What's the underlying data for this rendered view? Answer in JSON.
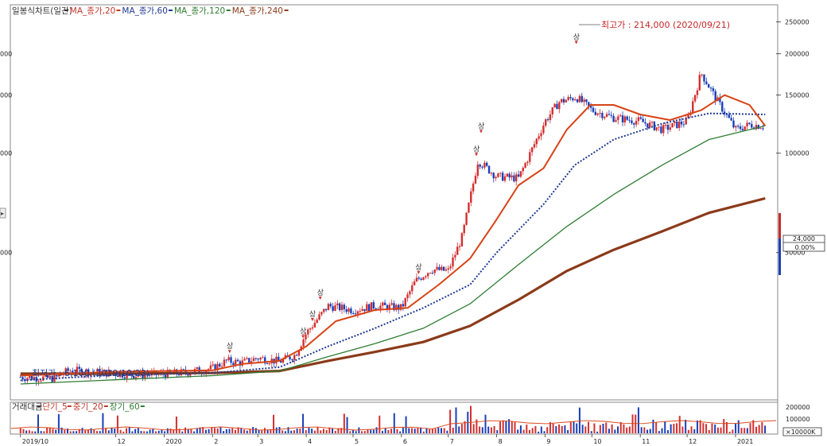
{
  "chart_data": [
    {
      "type": "candlestick",
      "legend": [
        {
          "label": "일봉식차트(일간)",
          "color": "#333333"
        },
        {
          "label": "MA_종가,20",
          "color": "#c0392b"
        },
        {
          "label": "MA_종가,60",
          "color": "#1f3a93"
        },
        {
          "label": "MA_종가,120",
          "color": "#2e7d32"
        },
        {
          "label": "MA_종가,240",
          "color": "#8b3a1a"
        }
      ],
      "y_scale": "log",
      "ylim": [
        18000,
        280000
      ],
      "y_ticks": [
        250000,
        200000,
        150000,
        100000,
        50000
      ],
      "y_ticks_left": [
        "000",
        "000",
        "000",
        "000"
      ],
      "x_ticks": [
        "2019/10",
        "12",
        "2020",
        "2",
        "3",
        "4",
        "5",
        "6",
        "7",
        "8",
        "9",
        "10",
        "11",
        "12",
        "2021"
      ],
      "close_path": [
        [
          "2019-10-01",
          21000
        ],
        [
          "2019-10-23",
          20800
        ],
        [
          "2019-11-01",
          22000
        ],
        [
          "2019-11-15",
          21800
        ],
        [
          "2019-12-01",
          21500
        ],
        [
          "2019-12-15",
          21300
        ],
        [
          "2020-01-01",
          21400
        ],
        [
          "2020-01-15",
          21700
        ],
        [
          "2020-02-01",
          22300
        ],
        [
          "2020-02-10",
          23500
        ],
        [
          "2020-02-20",
          23200
        ],
        [
          "2020-03-01",
          24000
        ],
        [
          "2020-03-15",
          23400
        ],
        [
          "2020-03-25",
          24500
        ],
        [
          "2020-04-01",
          28500
        ],
        [
          "2020-04-15",
          34500
        ],
        [
          "2020-05-01",
          33500
        ],
        [
          "2020-05-15",
          34500
        ],
        [
          "2020-06-01",
          34000
        ],
        [
          "2020-06-10",
          41000
        ],
        [
          "2020-06-20",
          44500
        ],
        [
          "2020-07-01",
          44000
        ],
        [
          "2020-07-10",
          56000
        ],
        [
          "2020-07-20",
          95000
        ],
        [
          "2020-08-01",
          85000
        ],
        [
          "2020-08-15",
          84000
        ],
        [
          "2020-09-01",
          125000
        ],
        [
          "2020-09-10",
          143000
        ],
        [
          "2020-09-21",
          148000
        ],
        [
          "2020-10-01",
          135000
        ],
        [
          "2020-10-15",
          128000
        ],
        [
          "2020-11-01",
          125000
        ],
        [
          "2020-11-15",
          118000
        ],
        [
          "2020-12-01",
          125000
        ],
        [
          "2020-12-10",
          175000
        ],
        [
          "2020-12-20",
          145000
        ],
        [
          "2021-01-01",
          118000
        ],
        [
          "2021-01-10",
          122000
        ],
        [
          "2021-01-20",
          121000
        ]
      ],
      "ma20_path": [
        [
          "2019-10-01",
          21200
        ],
        [
          "2019-12-01",
          21800
        ],
        [
          "2020-02-01",
          22000
        ],
        [
          "2020-02-20",
          23000
        ],
        [
          "2020-03-15",
          23500
        ],
        [
          "2020-04-01",
          26000
        ],
        [
          "2020-04-20",
          31000
        ],
        [
          "2020-05-15",
          33500
        ],
        [
          "2020-06-05",
          34000
        ],
        [
          "2020-06-25",
          40000
        ],
        [
          "2020-07-15",
          48000
        ],
        [
          "2020-07-31",
          62000
        ],
        [
          "2020-08-15",
          80000
        ],
        [
          "2020-08-31",
          90000
        ],
        [
          "2020-09-15",
          118000
        ],
        [
          "2020-09-30",
          140000
        ],
        [
          "2020-10-15",
          140000
        ],
        [
          "2020-11-01",
          131000
        ],
        [
          "2020-11-20",
          126000
        ],
        [
          "2020-12-10",
          135000
        ],
        [
          "2020-12-25",
          150000
        ],
        [
          "2021-01-10",
          140000
        ],
        [
          "2021-01-20",
          121000
        ]
      ],
      "ma60_path": [
        [
          "2019-10-01",
          20500
        ],
        [
          "2019-12-01",
          21300
        ],
        [
          "2020-02-01",
          21600
        ],
        [
          "2020-03-15",
          22500
        ],
        [
          "2020-04-15",
          26000
        ],
        [
          "2020-05-15",
          29500
        ],
        [
          "2020-06-15",
          34000
        ],
        [
          "2020-07-15",
          40000
        ],
        [
          "2020-08-01",
          50000
        ],
        [
          "2020-08-31",
          70000
        ],
        [
          "2020-09-20",
          92000
        ],
        [
          "2020-10-15",
          110000
        ],
        [
          "2020-11-15",
          123000
        ],
        [
          "2020-12-15",
          132000
        ],
        [
          "2021-01-20",
          131000
        ]
      ],
      "ma120_path": [
        [
          "2019-10-01",
          20000
        ],
        [
          "2019-12-01",
          20600
        ],
        [
          "2020-02-01",
          21200
        ],
        [
          "2020-03-15",
          21900
        ],
        [
          "2020-04-15",
          24200
        ],
        [
          "2020-05-15",
          26500
        ],
        [
          "2020-06-15",
          29500
        ],
        [
          "2020-07-15",
          35000
        ],
        [
          "2020-08-15",
          46000
        ],
        [
          "2020-09-15",
          60000
        ],
        [
          "2020-10-15",
          75000
        ],
        [
          "2020-11-15",
          92000
        ],
        [
          "2020-12-15",
          110000
        ],
        [
          "2021-01-20",
          121000
        ]
      ],
      "ma240_path": [
        [
          "2019-10-01",
          21500
        ],
        [
          "2019-12-01",
          21500
        ],
        [
          "2020-02-01",
          21600
        ],
        [
          "2020-03-15",
          21900
        ],
        [
          "2020-04-15",
          23500
        ],
        [
          "2020-05-15",
          25000
        ],
        [
          "2020-06-15",
          26800
        ],
        [
          "2020-07-15",
          30000
        ],
        [
          "2020-08-15",
          36000
        ],
        [
          "2020-09-15",
          44000
        ],
        [
          "2020-10-15",
          51000
        ],
        [
          "2020-11-15",
          58000
        ],
        [
          "2020-12-15",
          66000
        ],
        [
          "2021-01-20",
          73000
        ]
      ],
      "annotations": {
        "high": "최고가 : 214,000 (2020/09/21)",
        "low": "최저가 : 6,100 (2019/10/23)",
        "marker": "상"
      },
      "price_box": {
        "value": "24,000",
        "change": "0.00%"
      }
    },
    {
      "type": "bar",
      "legend": [
        {
          "label": "거래대금",
          "color": "#333333"
        },
        {
          "label": "단기_5",
          "color": "#c0392b"
        },
        {
          "label": "중기_20",
          "color": "#c0392b"
        },
        {
          "label": "장기_60",
          "color": "#2e7d32"
        }
      ],
      "y_ticks": [
        200000,
        100000
      ],
      "unit_label": "×10000K"
    }
  ],
  "colors": {
    "up": "#d32f2f",
    "down": "#1a3fb8",
    "ma20": "#d84315",
    "ma60": "#1f3a93",
    "ma120": "#2e7d32",
    "ma240": "#8b3a1a"
  }
}
